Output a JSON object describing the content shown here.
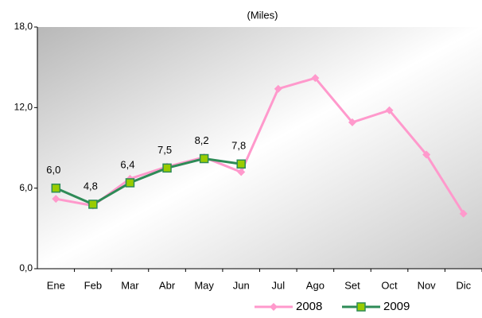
{
  "chart_data": {
    "type": "line",
    "subtitle": "(Miles)",
    "categories": [
      "Ene",
      "Feb",
      "Mar",
      "Abr",
      "May",
      "Jun",
      "Jul",
      "Ago",
      "Set",
      "Oct",
      "Nov",
      "Dic"
    ],
    "series": [
      {
        "name": "2008",
        "color": "#ff99cc",
        "marker": "diamond",
        "values": [
          5.2,
          4.7,
          6.7,
          7.6,
          8.3,
          7.2,
          13.4,
          14.2,
          10.9,
          11.8,
          8.5,
          4.1
        ]
      },
      {
        "name": "2009",
        "color": "#2e8b57",
        "marker": "square",
        "marker_color": "#99cc00",
        "values": [
          6.0,
          4.8,
          6.4,
          7.5,
          8.2,
          7.8,
          null,
          null,
          null,
          null,
          null,
          null
        ],
        "value_labels": [
          "6,0",
          "4,8",
          "6,4",
          "7,5",
          "8,2",
          "7,8",
          null,
          null,
          null,
          null,
          null,
          null
        ]
      }
    ],
    "ylim": [
      0,
      18
    ],
    "yticks": [
      {
        "value": 0,
        "label": "0,0"
      },
      {
        "value": 6,
        "label": "6,0"
      },
      {
        "value": 12,
        "label": "12,0"
      },
      {
        "value": 18,
        "label": "18,0"
      }
    ],
    "legend": "bottom"
  }
}
